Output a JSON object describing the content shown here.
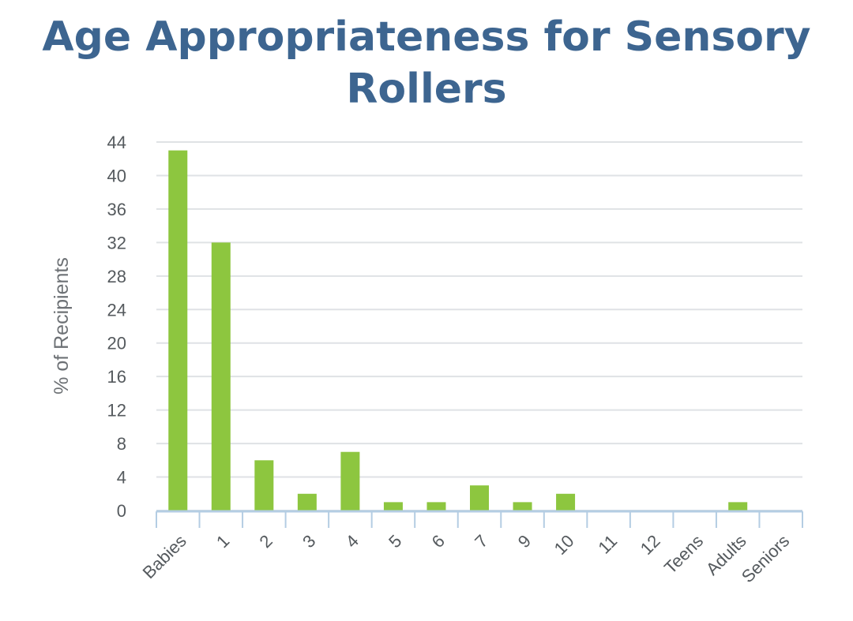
{
  "chart_data": {
    "type": "bar",
    "title": "Age Appropriateness for Sensory Rollers",
    "xlabel": "",
    "ylabel": "% of Recipients",
    "categories": [
      "Babies",
      "1",
      "2",
      "3",
      "4",
      "5",
      "6",
      "7",
      "9",
      "10",
      "11",
      "12",
      "Teens",
      "Adults",
      "Seniors"
    ],
    "values": [
      43,
      32,
      6,
      2,
      7,
      1,
      1,
      3,
      1,
      2,
      0,
      0,
      0,
      1,
      0
    ],
    "ylim": [
      0,
      44
    ],
    "yticks": [
      0,
      4,
      8,
      12,
      16,
      20,
      24,
      28,
      32,
      36,
      40,
      44
    ],
    "grid": true,
    "legend": "none",
    "colors": {
      "bar": "#8dc63f",
      "title": "#3d6590",
      "grid": "#dfe2e5",
      "axis": "#b4cde3",
      "tick_text": "#555a5e",
      "label_text": "#6d7175"
    }
  }
}
